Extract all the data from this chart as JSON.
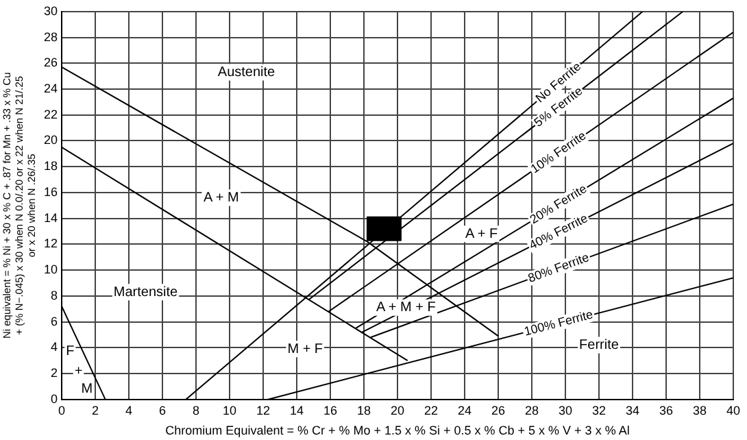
{
  "chart_data": {
    "type": "line",
    "xlabel": "Chromium Equivalent = % Cr + % Mo + 1.5 x % Si + 0.5 x % Cb + 5 x % V + 3 x % Al",
    "ylabel": "Ni equivalent = % Ni + 30 x % C + .87 for Mn + .33 x % Cu\n+ (% N−.045) x 30 when N 0.0/.20 or x 22 when N 21/.25\nor x 20 when N .26/.35",
    "xlim": [
      0,
      40
    ],
    "xticks": [
      0,
      2,
      4,
      6,
      8,
      10,
      12,
      14,
      16,
      18,
      20,
      22,
      24,
      26,
      28,
      30,
      32,
      34,
      36,
      38,
      40
    ],
    "ylim": [
      0,
      30
    ],
    "yticks": [
      0,
      2,
      4,
      6,
      8,
      10,
      12,
      14,
      16,
      18,
      20,
      22,
      24,
      26,
      28,
      30
    ],
    "grid": true,
    "legend": false,
    "marker": "none",
    "line_style": "solid",
    "series": [
      {
        "color": "#000000",
        "x": [
          0,
          18.2,
          26
        ],
        "values": [
          25.7,
          12.2,
          4.9
        ]
      },
      {
        "color": "#000000",
        "x": [
          0,
          20.6
        ],
        "values": [
          19.5,
          3.0
        ]
      },
      {
        "name": "No Ferrite",
        "color": "#000000",
        "x": [
          7.4,
          34.6
        ],
        "values": [
          0,
          30
        ]
      },
      {
        "name": "5% Ferrite",
        "color": "#000000",
        "x": [
          14.7,
          37
        ],
        "values": [
          7.7,
          30
        ]
      },
      {
        "name": "10% Ferrite",
        "color": "#000000",
        "x": [
          15.9,
          40
        ],
        "values": [
          6.8,
          28.4
        ]
      },
      {
        "name": "20% Ferrite",
        "color": "#000000",
        "x": [
          17.5,
          40
        ],
        "values": [
          5.5,
          23.3
        ]
      },
      {
        "name": "40% Ferrite",
        "color": "#000000",
        "x": [
          17.9,
          40
        ],
        "values": [
          5.2,
          19.8
        ]
      },
      {
        "name": "80% Ferrite",
        "color": "#000000",
        "x": [
          18.4,
          40
        ],
        "values": [
          4.8,
          15.1
        ]
      },
      {
        "name": "100% Ferrite",
        "color": "#000000",
        "x": [
          12.3,
          40
        ],
        "values": [
          0,
          9.4
        ]
      },
      {
        "color": "#000000",
        "x": [
          0,
          2.6
        ],
        "values": [
          7.2,
          0
        ]
      },
      {
        "type": "area",
        "color": "#000000",
        "x": [
          18.2,
          20.2,
          20.2,
          18.2,
          18.2
        ],
        "values": [
          12.3,
          12.3,
          14.1,
          14.1,
          12.3
        ]
      }
    ],
    "annotations": [
      "Austenite",
      "A + M",
      "Martensite",
      "M + F",
      "A + M + F",
      "A + F",
      "Ferrite",
      "F",
      "+",
      "M"
    ]
  }
}
